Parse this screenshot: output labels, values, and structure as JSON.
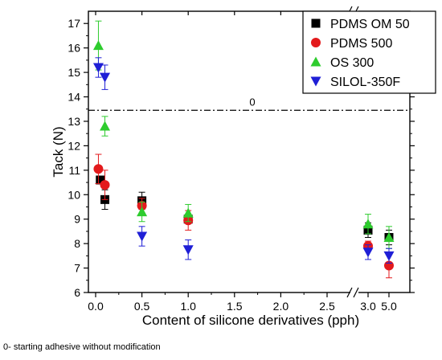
{
  "chart_data": {
    "type": "scatter",
    "xlabel": "Content of silicone derivatives (pph)",
    "ylabel": "Tack (N)",
    "ylim": [
      6,
      17.5
    ],
    "x_axis_break": "between 2.5 and 3.0",
    "y_axis_break": "at top, near 17.5",
    "y_ticks": [
      "6",
      "7",
      "8",
      "9",
      "10",
      "11",
      "12",
      "13",
      "14",
      "15",
      "16",
      "17"
    ],
    "x_ticks": [
      "0.0",
      "0.5",
      "1.0",
      "1.5",
      "2.0",
      "2.5",
      "3.0",
      "5.0"
    ],
    "reference_line": {
      "label": "0",
      "y": 13.45,
      "style": "dash-dot"
    },
    "legend_position": "top-right",
    "series": [
      {
        "name": "PDMS OM 50",
        "color": "#000000",
        "marker": "square",
        "points": [
          {
            "x": 0.05,
            "y": 10.6,
            "err": 0.15
          },
          {
            "x": 0.1,
            "y": 9.8,
            "err": 0.4
          },
          {
            "x": 0.5,
            "y": 9.75,
            "err": 0.35
          },
          {
            "x": 1.0,
            "y": 9.0,
            "err": 0.15
          },
          {
            "x": 3.0,
            "y": 8.55,
            "err": 0.3
          },
          {
            "x": 5.0,
            "y": 8.25,
            "err": 0.3
          }
        ]
      },
      {
        "name": "PDMS 500",
        "color": "#e31a1c",
        "marker": "circle",
        "points": [
          {
            "x": 0.03,
            "y": 11.05,
            "err": 0.6
          },
          {
            "x": 0.1,
            "y": 10.4,
            "err": 0.6
          },
          {
            "x": 0.5,
            "y": 9.55,
            "err": 0.3
          },
          {
            "x": 1.0,
            "y": 8.95,
            "err": 0.4
          },
          {
            "x": 3.0,
            "y": 7.9,
            "err": 0.2
          },
          {
            "x": 5.0,
            "y": 7.1,
            "err": 0.5
          }
        ]
      },
      {
        "name": "OS 300",
        "color": "#2ecc2e",
        "marker": "triangle-up",
        "points": [
          {
            "x": 0.03,
            "y": 16.1,
            "err": 1.0
          },
          {
            "x": 0.1,
            "y": 12.8,
            "err": 0.4
          },
          {
            "x": 0.5,
            "y": 9.3,
            "err": 0.4
          },
          {
            "x": 1.0,
            "y": 9.25,
            "err": 0.35
          },
          {
            "x": 3.0,
            "y": 8.8,
            "err": 0.4
          },
          {
            "x": 5.0,
            "y": 8.25,
            "err": 0.45
          }
        ]
      },
      {
        "name": "SILOL-350F",
        "color": "#1f1fd6",
        "marker": "triangle-down",
        "points": [
          {
            "x": 0.03,
            "y": 15.2,
            "err": 0.4
          },
          {
            "x": 0.1,
            "y": 14.8,
            "err": 0.5
          },
          {
            "x": 0.5,
            "y": 8.3,
            "err": 0.4
          },
          {
            "x": 1.0,
            "y": 7.75,
            "err": 0.4
          },
          {
            "x": 3.0,
            "y": 7.65,
            "err": 0.3
          },
          {
            "x": 5.0,
            "y": 7.5,
            "err": 0.3
          }
        ]
      }
    ]
  },
  "footnote": "0- starting adhesive without modification"
}
